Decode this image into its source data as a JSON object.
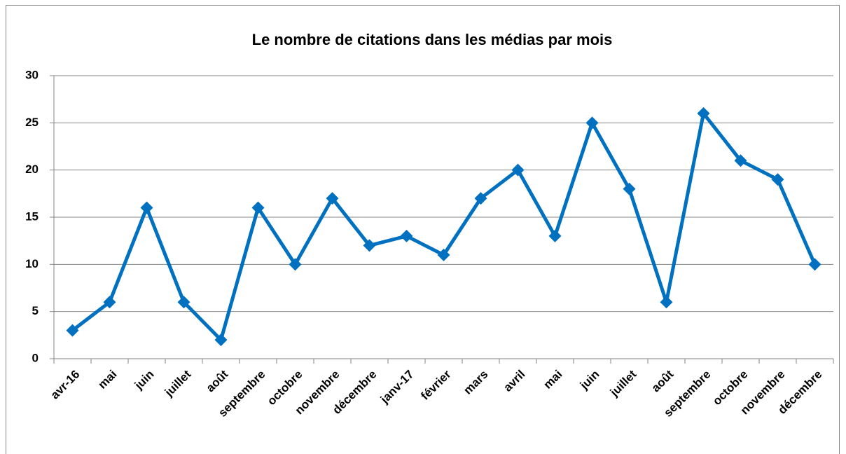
{
  "chart_data": {
    "type": "line",
    "title": "Le nombre de citations dans les médias par mois",
    "categories": [
      "avr-16",
      "mai",
      "juin",
      "juillet",
      "août",
      "septembre",
      "octobre",
      "novembre",
      "décembre",
      "janv-17",
      "février",
      "mars",
      "avril",
      "mai",
      "juin",
      "juillet",
      "août",
      "septembre",
      "octobre",
      "novembre",
      "décembre"
    ],
    "values": [
      3,
      6,
      16,
      6,
      2,
      16,
      10,
      17,
      12,
      13,
      11,
      17,
      20,
      13,
      25,
      18,
      6,
      26,
      21,
      19,
      10
    ],
    "color": "#0070c0",
    "ylim": [
      0,
      30
    ],
    "yticks": [
      0,
      5,
      10,
      15,
      20,
      25,
      30
    ],
    "grid": true
  }
}
